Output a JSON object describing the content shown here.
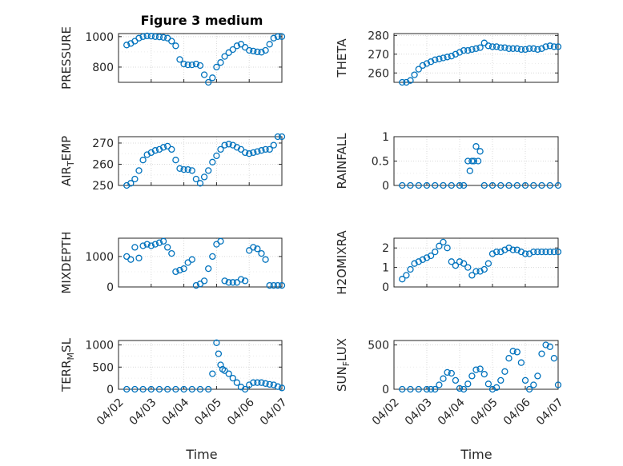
{
  "figure_title": "Figure 3 medium",
  "x_axis": {
    "label": "Time",
    "tick_labels": [
      "04/02",
      "04/03",
      "04/04",
      "04/05",
      "04/06",
      "04/07"
    ],
    "range_days": [
      0,
      5
    ]
  },
  "colors": {
    "marker": "#0072BD",
    "grid": "#d9d9d9",
    "axis": "#262626"
  },
  "chart_data": [
    {
      "type": "scatter",
      "name": "pressure",
      "ylabel": "PRESSURE",
      "ylabel_sub": "",
      "ylim": [
        700,
        1020
      ],
      "yticks": [
        800,
        1000
      ],
      "x": [
        "04/02 06:00",
        "04/02 09:00",
        "04/02 12:00",
        "04/02 15:00",
        "04/02 18:00",
        "04/02 21:00",
        "04/03 00:00",
        "04/03 03:00",
        "04/03 06:00",
        "04/03 09:00",
        "04/03 12:00",
        "04/03 15:00",
        "04/03 18:00",
        "04/03 21:00",
        "04/04 00:00",
        "04/04 03:00",
        "04/04 06:00",
        "04/04 09:00",
        "04/04 12:00",
        "04/04 15:00",
        "04/04 18:00",
        "04/04 21:00",
        "04/05 00:00",
        "04/05 03:00",
        "04/05 06:00",
        "04/05 09:00",
        "04/05 12:00",
        "04/05 15:00",
        "04/05 18:00",
        "04/05 21:00",
        "04/06 00:00",
        "04/06 03:00",
        "04/06 06:00",
        "04/06 09:00",
        "04/06 12:00",
        "04/06 15:00",
        "04/06 18:00",
        "04/06 21:00",
        "04/07 00:00"
      ],
      "y": [
        945,
        955,
        970,
        990,
        1000,
        1005,
        1003,
        1000,
        998,
        995,
        990,
        970,
        940,
        850,
        820,
        815,
        815,
        820,
        810,
        750,
        700,
        730,
        800,
        830,
        870,
        895,
        915,
        940,
        950,
        930,
        910,
        905,
        900,
        898,
        910,
        950,
        990,
        1000,
        1000
      ]
    },
    {
      "type": "scatter",
      "name": "theta",
      "ylabel": "THETA",
      "ylabel_sub": "",
      "ylim": [
        255,
        281
      ],
      "yticks": [
        260,
        270,
        280
      ],
      "x": [
        "04/02 06:00",
        "04/02 09:00",
        "04/02 12:00",
        "04/02 15:00",
        "04/02 18:00",
        "04/02 21:00",
        "04/03 00:00",
        "04/03 03:00",
        "04/03 06:00",
        "04/03 09:00",
        "04/03 12:00",
        "04/03 15:00",
        "04/03 18:00",
        "04/03 21:00",
        "04/04 00:00",
        "04/04 03:00",
        "04/04 06:00",
        "04/04 09:00",
        "04/04 12:00",
        "04/04 15:00",
        "04/04 18:00",
        "04/04 21:00",
        "04/05 00:00",
        "04/05 03:00",
        "04/05 06:00",
        "04/05 09:00",
        "04/05 12:00",
        "04/05 15:00",
        "04/05 18:00",
        "04/05 21:00",
        "04/06 00:00",
        "04/06 03:00",
        "04/06 06:00",
        "04/06 09:00",
        "04/06 12:00",
        "04/06 15:00",
        "04/06 18:00",
        "04/06 21:00",
        "04/07 00:00"
      ],
      "y": [
        255,
        255,
        256,
        259,
        262,
        264,
        265,
        266,
        267,
        267.5,
        268,
        268.5,
        269,
        270,
        271,
        272,
        272,
        272.5,
        273,
        273.5,
        276,
        274.5,
        274,
        274,
        273.5,
        273.5,
        273,
        273,
        273,
        272.5,
        272.5,
        273,
        273,
        272.5,
        273,
        274,
        274.5,
        274,
        274
      ]
    },
    {
      "type": "scatter",
      "name": "air_temp",
      "ylabel": "AIR",
      "ylabel_sub": "T",
      "ylabel_suffix": "EMP",
      "ylim": [
        250,
        273
      ],
      "yticks": [
        250,
        260,
        270
      ],
      "x": [
        "04/02 06:00",
        "04/02 09:00",
        "04/02 12:00",
        "04/02 15:00",
        "04/02 18:00",
        "04/02 21:00",
        "04/03 00:00",
        "04/03 03:00",
        "04/03 06:00",
        "04/03 09:00",
        "04/03 12:00",
        "04/03 15:00",
        "04/03 18:00",
        "04/03 21:00",
        "04/04 00:00",
        "04/04 03:00",
        "04/04 06:00",
        "04/04 09:00",
        "04/04 12:00",
        "04/04 15:00",
        "04/04 18:00",
        "04/04 21:00",
        "04/05 00:00",
        "04/05 03:00",
        "04/05 06:00",
        "04/05 09:00",
        "04/05 12:00",
        "04/05 15:00",
        "04/05 18:00",
        "04/05 21:00",
        "04/06 00:00",
        "04/06 03:00",
        "04/06 06:00",
        "04/06 09:00",
        "04/06 12:00",
        "04/06 15:00",
        "04/06 18:00",
        "04/06 21:00",
        "04/07 00:00"
      ],
      "y": [
        250,
        251,
        253,
        257,
        262,
        264.5,
        265.5,
        266.5,
        267,
        268,
        268.5,
        267,
        262,
        258,
        257.5,
        257.5,
        257,
        253,
        251,
        254,
        257,
        261,
        264,
        267,
        269,
        269.5,
        269,
        268,
        267,
        265.5,
        265,
        265.5,
        266,
        266.5,
        267,
        267,
        269,
        273,
        273
      ]
    },
    {
      "type": "scatter",
      "name": "rainfall",
      "ylabel": "RAINFALL",
      "ylabel_sub": "",
      "ylim": [
        0,
        1
      ],
      "yticks": [
        0,
        0.5,
        1
      ],
      "x": [
        "04/02 06:00",
        "04/02 12:00",
        "04/02 18:00",
        "04/03 00:00",
        "04/03 06:00",
        "04/03 12:00",
        "04/03 18:00",
        "04/04 00:00",
        "04/04 03:00",
        "04/04 06:00",
        "04/04 07:30",
        "04/04 09:00",
        "04/04 10:30",
        "04/04 12:00",
        "04/04 13:30",
        "04/04 15:00",
        "04/04 18:00",
        "04/05 00:00",
        "04/05 06:00",
        "04/05 12:00",
        "04/05 18:00",
        "04/06 00:00",
        "04/06 06:00",
        "04/06 12:00",
        "04/06 18:00",
        "04/07 00:00"
      ],
      "y": [
        0,
        0,
        0,
        0,
        0,
        0,
        0,
        0,
        0,
        0.5,
        0.3,
        0.5,
        0.5,
        0.8,
        0.5,
        0.7,
        0,
        0,
        0,
        0,
        0,
        0,
        0,
        0,
        0,
        0
      ]
    },
    {
      "type": "scatter",
      "name": "mixdepth",
      "ylabel": "MIXDEPTH",
      "ylabel_sub": "",
      "ylim": [
        0,
        1600
      ],
      "yticks": [
        0,
        1000
      ],
      "x": [
        "04/02 06:00",
        "04/02 09:00",
        "04/02 12:00",
        "04/02 15:00",
        "04/02 18:00",
        "04/02 21:00",
        "04/03 00:00",
        "04/03 03:00",
        "04/03 06:00",
        "04/03 09:00",
        "04/03 12:00",
        "04/03 15:00",
        "04/03 18:00",
        "04/03 21:00",
        "04/04 00:00",
        "04/04 03:00",
        "04/04 06:00",
        "04/04 09:00",
        "04/04 12:00",
        "04/04 15:00",
        "04/04 18:00",
        "04/04 21:00",
        "04/05 00:00",
        "04/05 03:00",
        "04/05 06:00",
        "04/05 09:00",
        "04/05 12:00",
        "04/05 15:00",
        "04/05 18:00",
        "04/05 21:00",
        "04/06 00:00",
        "04/06 03:00",
        "04/06 06:00",
        "04/06 09:00",
        "04/06 12:00",
        "04/06 15:00",
        "04/06 18:00",
        "04/06 21:00",
        "04/07 00:00"
      ],
      "y": [
        1000,
        900,
        1300,
        950,
        1350,
        1400,
        1350,
        1400,
        1450,
        1500,
        1300,
        1100,
        500,
        550,
        600,
        800,
        900,
        50,
        100,
        200,
        600,
        1000,
        1400,
        1500,
        200,
        150,
        150,
        150,
        250,
        200,
        1200,
        1300,
        1250,
        1100,
        900,
        50,
        50,
        50,
        50
      ]
    },
    {
      "type": "scatter",
      "name": "h2omixra",
      "ylabel": "H2OMIXRA",
      "ylabel_sub": "",
      "ylim": [
        0,
        2.5
      ],
      "yticks": [
        0,
        1,
        2
      ],
      "x": [
        "04/02 06:00",
        "04/02 09:00",
        "04/02 12:00",
        "04/02 15:00",
        "04/02 18:00",
        "04/02 21:00",
        "04/03 00:00",
        "04/03 03:00",
        "04/03 06:00",
        "04/03 09:00",
        "04/03 12:00",
        "04/03 15:00",
        "04/03 18:00",
        "04/03 21:00",
        "04/04 00:00",
        "04/04 03:00",
        "04/04 06:00",
        "04/04 09:00",
        "04/04 12:00",
        "04/04 15:00",
        "04/04 18:00",
        "04/04 21:00",
        "04/05 00:00",
        "04/05 03:00",
        "04/05 06:00",
        "04/05 09:00",
        "04/05 12:00",
        "04/05 15:00",
        "04/05 18:00",
        "04/05 21:00",
        "04/06 00:00",
        "04/06 03:00",
        "04/06 06:00",
        "04/06 09:00",
        "04/06 12:00",
        "04/06 15:00",
        "04/06 18:00",
        "04/06 21:00",
        "04/07 00:00"
      ],
      "y": [
        0.4,
        0.6,
        0.9,
        1.2,
        1.3,
        1.4,
        1.5,
        1.6,
        1.8,
        2.1,
        2.3,
        2.0,
        1.3,
        1.1,
        1.3,
        1.2,
        1.0,
        0.6,
        0.8,
        0.8,
        0.9,
        1.2,
        1.7,
        1.8,
        1.8,
        1.9,
        2.0,
        1.9,
        1.9,
        1.8,
        1.7,
        1.7,
        1.8,
        1.8,
        1.8,
        1.8,
        1.8,
        1.8,
        1.8
      ]
    },
    {
      "type": "scatter",
      "name": "terr_msl",
      "ylabel": "TERR",
      "ylabel_sub": "M",
      "ylabel_suffix": "SL",
      "ylim": [
        0,
        1100
      ],
      "yticks": [
        0,
        500,
        1000
      ],
      "x": [
        "04/02 06:00",
        "04/02 12:00",
        "04/02 18:00",
        "04/03 00:00",
        "04/03 06:00",
        "04/03 12:00",
        "04/03 18:00",
        "04/04 00:00",
        "04/04 06:00",
        "04/04 12:00",
        "04/04 18:00",
        "04/04 21:00",
        "04/05 00:00",
        "04/05 01:30",
        "04/05 03:00",
        "04/05 04:30",
        "04/05 06:00",
        "04/05 09:00",
        "04/05 12:00",
        "04/05 15:00",
        "04/05 18:00",
        "04/05 21:00",
        "04/06 00:00",
        "04/06 03:00",
        "04/06 06:00",
        "04/06 09:00",
        "04/06 12:00",
        "04/06 15:00",
        "04/06 18:00",
        "04/06 21:00",
        "04/07 00:00"
      ],
      "y": [
        0,
        0,
        0,
        0,
        0,
        0,
        0,
        0,
        0,
        0,
        0,
        350,
        1050,
        800,
        550,
        450,
        420,
        350,
        250,
        150,
        50,
        0,
        100,
        150,
        150,
        150,
        130,
        110,
        100,
        60,
        30
      ]
    },
    {
      "type": "scatter",
      "name": "sun_flux",
      "ylabel": "SUN",
      "ylabel_sub": "F",
      "ylabel_suffix": "LUX",
      "ylim": [
        0,
        550
      ],
      "yticks": [
        0,
        500
      ],
      "x": [
        "04/02 06:00",
        "04/02 12:00",
        "04/02 18:00",
        "04/03 00:00",
        "04/03 03:00",
        "04/03 06:00",
        "04/03 09:00",
        "04/03 12:00",
        "04/03 15:00",
        "04/03 18:00",
        "04/03 21:00",
        "04/04 00:00",
        "04/04 03:00",
        "04/04 06:00",
        "04/04 09:00",
        "04/04 12:00",
        "04/04 15:00",
        "04/04 18:00",
        "04/04 21:00",
        "04/05 00:00",
        "04/05 03:00",
        "04/05 06:00",
        "04/05 09:00",
        "04/05 12:00",
        "04/05 15:00",
        "04/05 18:00",
        "04/05 21:00",
        "04/06 00:00",
        "04/06 03:00",
        "04/06 06:00",
        "04/06 09:00",
        "04/06 12:00",
        "04/06 15:00",
        "04/06 18:00",
        "04/06 21:00",
        "04/07 00:00"
      ],
      "y": [
        0,
        0,
        0,
        0,
        0,
        0,
        50,
        120,
        190,
        180,
        100,
        10,
        0,
        60,
        150,
        220,
        230,
        170,
        60,
        0,
        20,
        100,
        200,
        350,
        430,
        420,
        300,
        100,
        0,
        50,
        150,
        400,
        500,
        480,
        350,
        50
      ]
    }
  ]
}
